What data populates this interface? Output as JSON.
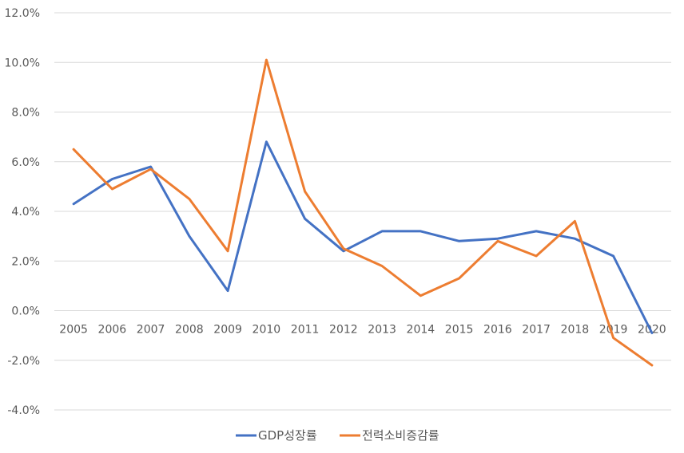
{
  "chart_data": {
    "type": "line",
    "title": "",
    "xlabel": "",
    "ylabel": "",
    "categories": [
      "2005",
      "2006",
      "2007",
      "2008",
      "2009",
      "2010",
      "2011",
      "2012",
      "2013",
      "2014",
      "2015",
      "2016",
      "2017",
      "2018",
      "2019",
      "2020"
    ],
    "ylim": [
      -4,
      12
    ],
    "yticks": [
      -4,
      -2,
      0,
      2,
      4,
      6,
      8,
      10,
      12
    ],
    "ytick_labels": [
      "-4.0%",
      "-2.0%",
      "0.0%",
      "2.0%",
      "4.0%",
      "6.0%",
      "8.0%",
      "10.0%",
      "12.0%"
    ],
    "grid": true,
    "legend_position": "bottom",
    "series": [
      {
        "name": "GDP성장률",
        "color": "#4472c4",
        "values": [
          4.3,
          5.3,
          5.8,
          3.0,
          0.8,
          6.8,
          3.7,
          2.4,
          3.2,
          3.2,
          2.8,
          2.9,
          3.2,
          2.9,
          2.2,
          -0.9
        ]
      },
      {
        "name": "전력소비증감률",
        "color": "#ed7d31",
        "values": [
          6.5,
          4.9,
          5.7,
          4.5,
          2.4,
          10.1,
          4.8,
          2.5,
          1.8,
          0.6,
          1.3,
          2.8,
          2.2,
          3.6,
          -1.1,
          -2.2
        ]
      }
    ]
  }
}
